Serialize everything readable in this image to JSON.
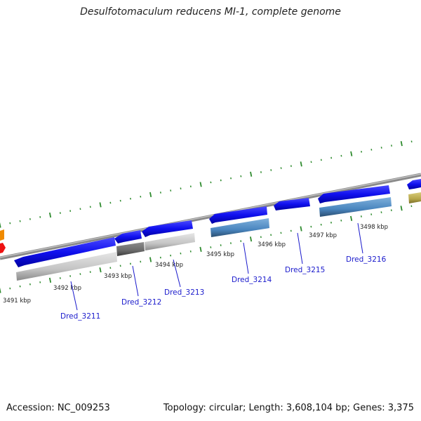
{
  "title": "Desulfotomaculum reducens MI-1, complete genome",
  "footer": {
    "accession": "Accession: NC_009253",
    "topology": "Topology: circular; Length: 3,608,104 bp; Genes: 3,375"
  },
  "scale_labels": [
    "3491 kbp",
    "3492 kbp",
    "3493 kbp",
    "3494 kbp",
    "3495 kbp",
    "3496 kbp",
    "3497 kbp",
    "3498 kbp"
  ],
  "gene_labels": [
    "Dred_3211",
    "Dred_3212",
    "Dred_3213",
    "Dred_3214",
    "Dred_3215",
    "Dred_3216"
  ],
  "colors": {
    "cds": "#1010ee",
    "rna_gray": "#bdbdbd",
    "rna_dark": "#6a6a6a",
    "rna_steel": "#4a86bf",
    "rna_olive": "#b5a64a",
    "backbone": "#8a8a8a",
    "ticks": "#2e8b2e",
    "label_blue": "#1a1acc",
    "red": "#ee1111",
    "orange": "#f08a00"
  }
}
